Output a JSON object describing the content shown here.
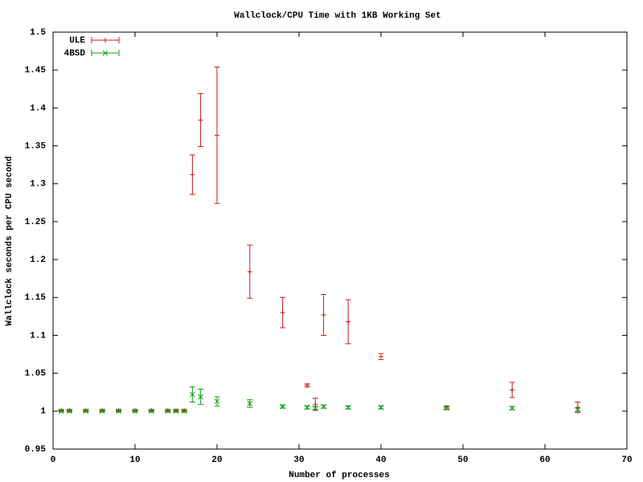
{
  "chart_data": {
    "type": "errorbar",
    "title": "Wallclock/CPU Time with 1KB Working Set",
    "x_label": "Number of processes",
    "y_label": "Wallclock seconds per CPU second",
    "xlim": [
      0,
      70
    ],
    "xticks": [
      0,
      10,
      20,
      30,
      40,
      50,
      60,
      70
    ],
    "ylim": [
      0.95,
      1.5
    ],
    "yticks": [
      0.95,
      1,
      1.05,
      1.1,
      1.15,
      1.2,
      1.25,
      1.3,
      1.35,
      1.4,
      1.45,
      1.5
    ],
    "legend": "top left",
    "series": [
      {
        "name": "ULE",
        "color": "#d01818",
        "marker": "plus",
        "x": [
          1,
          2,
          4,
          6,
          8,
          10,
          12,
          14,
          15,
          16,
          17,
          18,
          20,
          24,
          28,
          31,
          32,
          33,
          36,
          40,
          48,
          56,
          64
        ],
        "values": [
          1.001,
          1.001,
          1.001,
          1.001,
          1.001,
          1.001,
          1.001,
          1.001,
          1.001,
          1.001,
          1.312,
          1.384,
          1.364,
          1.184,
          1.13,
          1.034,
          1.009,
          1.127,
          1.118,
          1.072,
          1.005,
          1.028,
          1.005
        ],
        "errors": [
          0.001,
          0.001,
          0.001,
          0.001,
          0.001,
          0.001,
          0.001,
          0.001,
          0.001,
          0.001,
          0.026,
          0.035,
          0.09,
          0.035,
          0.02,
          0.002,
          0.008,
          0.027,
          0.029,
          0.004,
          0.002,
          0.01,
          0.007
        ]
      },
      {
        "name": "4BSD",
        "color": "#10a010",
        "marker": "cross",
        "x": [
          1,
          2,
          4,
          6,
          8,
          10,
          12,
          14,
          15,
          16,
          17,
          18,
          20,
          24,
          28,
          31,
          32,
          33,
          36,
          40,
          48,
          56,
          64
        ],
        "values": [
          1.0,
          1.0,
          1.0,
          1.0,
          1.0,
          1.0,
          1.0,
          1.0,
          1.0,
          1.0,
          1.022,
          1.019,
          1.013,
          1.01,
          1.006,
          1.005,
          1.004,
          1.006,
          1.005,
          1.005,
          1.004,
          1.004,
          1.002
        ],
        "errors": [
          0.001,
          0.001,
          0.001,
          0.001,
          0.001,
          0.001,
          0.001,
          0.001,
          0.001,
          0.001,
          0.01,
          0.01,
          0.006,
          0.005,
          0.002,
          0.002,
          0.002,
          0.002,
          0.002,
          0.002,
          0.002,
          0.002,
          0.002
        ]
      }
    ]
  }
}
